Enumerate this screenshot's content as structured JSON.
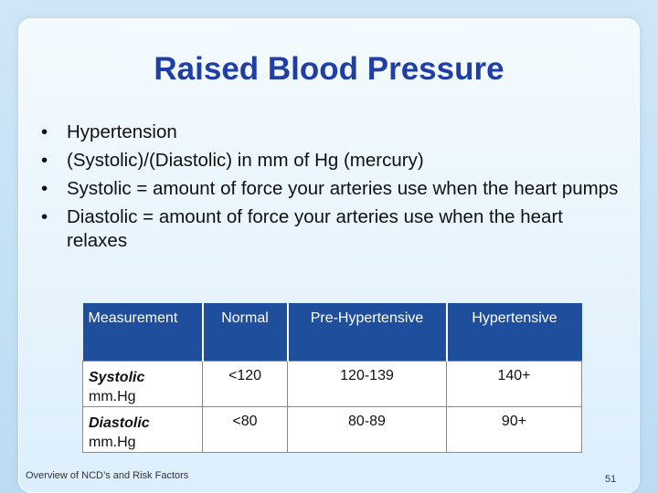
{
  "slide": {
    "title": "Raised Blood Pressure",
    "bullets": [
      "Hypertension",
      "(Systolic)/(Diastolic) in mm of Hg (mercury)",
      "Systolic = amount of force your arteries use when the heart pumps",
      "Diastolic = amount of force your arteries use when the heart relaxes"
    ],
    "bullet_char": "•",
    "table": {
      "headers": [
        "Measurement",
        "Normal",
        "Pre-Hypertensive",
        "Hypertensive"
      ],
      "rows": [
        {
          "name": "Systolic",
          "unit": "mm.Hg",
          "values": [
            "<120",
            "120-139",
            "140+"
          ]
        },
        {
          "name": "Diastolic",
          "unit": "mm.Hg",
          "values": [
            "<80",
            "80-89",
            "90+"
          ]
        }
      ]
    },
    "footer": "Overview of NCD’s and Risk Factors",
    "page_number": "51"
  },
  "colors": {
    "title": "#1f3fa6",
    "table_header_bg": "#1f4f9c",
    "background": "#cfe6f7"
  }
}
